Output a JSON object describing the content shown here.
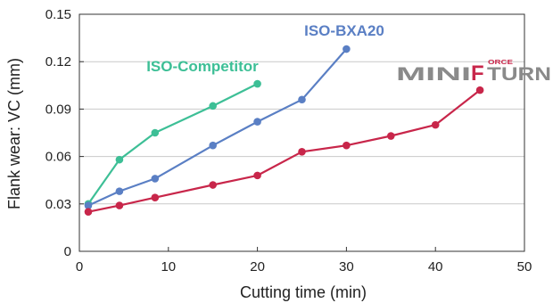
{
  "chart_data": {
    "type": "line",
    "xlabel": "Cutting time (min)",
    "ylabel": "Flank wear: VC (mm)",
    "xlim": [
      0,
      50
    ],
    "ylim": [
      0,
      0.15
    ],
    "x_ticks": [
      "0",
      "10",
      "20",
      "30",
      "40",
      "50"
    ],
    "y_ticks": [
      "0",
      "0.03",
      "0.06",
      "0.09",
      "0.12",
      "0.15"
    ],
    "x_tick_values": [
      0,
      10,
      20,
      30,
      40,
      50
    ],
    "y_tick_values": [
      0,
      0.03,
      0.06,
      0.09,
      0.12,
      0.15
    ],
    "grid": "horizontal",
    "series": [
      {
        "name": "ISO-Competitor",
        "color": "#3dbf96",
        "points": [
          [
            1,
            0.03
          ],
          [
            4.5,
            0.058
          ],
          [
            8.5,
            0.075
          ],
          [
            15,
            0.092
          ],
          [
            20,
            0.106
          ]
        ]
      },
      {
        "name": "ISO-BXA20",
        "color": "#5a7fc4",
        "points": [
          [
            1,
            0.029
          ],
          [
            4.5,
            0.038
          ],
          [
            8.5,
            0.046
          ],
          [
            15,
            0.067
          ],
          [
            20,
            0.082
          ],
          [
            25,
            0.096
          ],
          [
            30,
            0.128
          ]
        ]
      },
      {
        "points": [
          [
            1,
            0.025
          ],
          [
            4.5,
            0.029
          ],
          [
            8.5,
            0.034
          ],
          [
            15,
            0.042
          ],
          [
            20,
            0.048
          ],
          [
            25,
            0.063
          ],
          [
            30,
            0.067
          ],
          [
            35,
            0.073
          ],
          [
            40,
            0.08
          ],
          [
            45,
            0.102
          ]
        ],
        "color": "#c8264a"
      }
    ],
    "annotations": [
      {
        "text": "ISO-Competitor",
        "series": 0
      },
      {
        "text": "ISO-BXA20",
        "series": 1
      }
    ],
    "logo": {
      "text": "MINIFORCETURN",
      "color": "#8a8a8a",
      "accent": "#c8264a"
    }
  }
}
